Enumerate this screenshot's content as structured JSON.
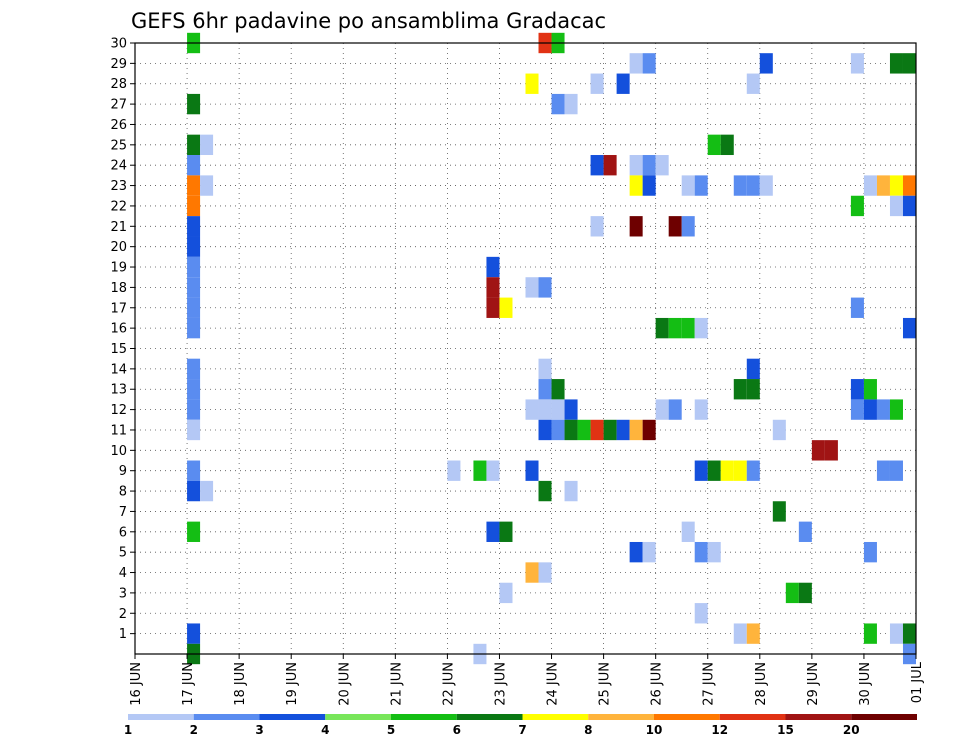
{
  "chart_data": {
    "type": "heatmap",
    "title": "GEFS 6hr padavine po ansamblima Gradacac",
    "xlabel": "",
    "ylabel": "",
    "x_ticks": [
      "16 JUN",
      "17 JUN",
      "18 JUN",
      "19 JUN",
      "20 JUN",
      "21 JUN",
      "22 JUN",
      "23 JUN",
      "24 JUN",
      "25 JUN",
      "26 JUN",
      "27 JUN",
      "28 JUN",
      "29 JUN",
      "30 JUN",
      "01 JUL"
    ],
    "x_range": [
      "16 JUN 00",
      "01 JUL 00"
    ],
    "step_hours": 6,
    "y_ticks": [
      1,
      2,
      3,
      4,
      5,
      6,
      7,
      8,
      9,
      10,
      11,
      12,
      13,
      14,
      15,
      16,
      17,
      18,
      19,
      20,
      21,
      22,
      23,
      24,
      25,
      26,
      27,
      28,
      29,
      30
    ],
    "y_range": [
      0,
      30
    ],
    "grid": true,
    "legend": {
      "placement": "bottom",
      "labels": [
        "1",
        "2",
        "3",
        "4",
        "5",
        "6",
        "7",
        "8",
        "10",
        "12",
        "15",
        "20"
      ],
      "colors": [
        "#b4c8f5",
        "#5a8cf0",
        "#1450dc",
        "#78e65a",
        "#14be14",
        "#0a7814",
        "#ffff00",
        "#ffb43c",
        "#ff7800",
        "#e13214",
        "#a01414",
        "#6e0000"
      ]
    },
    "cells": [
      [
        "17 JUN 00",
        30,
        5
      ],
      [
        "17 JUN 00",
        27,
        6
      ],
      [
        "17 JUN 00",
        25,
        6
      ],
      [
        "17 JUN 00",
        24,
        2
      ],
      [
        "17 JUN 00",
        23,
        9
      ],
      [
        "17 JUN 00",
        22,
        9
      ],
      [
        "17 JUN 00",
        21,
        3
      ],
      [
        "17 JUN 00",
        20,
        3
      ],
      [
        "17 JUN 00",
        19,
        2
      ],
      [
        "17 JUN 00",
        18,
        2
      ],
      [
        "17 JUN 00",
        17,
        2
      ],
      [
        "17 JUN 00",
        16,
        2
      ],
      [
        "17 JUN 00",
        14,
        2
      ],
      [
        "17 JUN 00",
        13,
        2
      ],
      [
        "17 JUN 00",
        12,
        2
      ],
      [
        "17 JUN 00",
        11,
        1
      ],
      [
        "17 JUN 00",
        9,
        2
      ],
      [
        "17 JUN 00",
        8,
        3
      ],
      [
        "17 JUN 00",
        6,
        5
      ],
      [
        "17 JUN 00",
        1,
        3
      ],
      [
        "17 JUN 00",
        0,
        6
      ],
      [
        "17 JUN 06",
        25,
        1
      ],
      [
        "17 JUN 06",
        23,
        1
      ],
      [
        "17 JUN 06",
        8,
        1
      ],
      [
        "22 JUN 00",
        9,
        1
      ],
      [
        "22 JUN 12",
        9,
        5
      ],
      [
        "22 JUN 18",
        9,
        1
      ],
      [
        "22 JUN 12",
        0,
        1
      ],
      [
        "22 JUN 18",
        19,
        3
      ],
      [
        "22 JUN 18",
        18,
        11
      ],
      [
        "22 JUN 18",
        17,
        11
      ],
      [
        "22 JUN 18",
        6,
        3
      ],
      [
        "23 JUN 00",
        17,
        7
      ],
      [
        "23 JUN 00",
        6,
        6
      ],
      [
        "23 JUN 00",
        3,
        1
      ],
      [
        "23 JUN 12",
        28,
        7
      ],
      [
        "23 JUN 12",
        18,
        1
      ],
      [
        "23 JUN 12",
        12,
        1
      ],
      [
        "23 JUN 12",
        9,
        3
      ],
      [
        "23 JUN 12",
        4,
        8
      ],
      [
        "23 JUN 18",
        30,
        10
      ],
      [
        "23 JUN 18",
        18,
        2
      ],
      [
        "23 JUN 18",
        14,
        1
      ],
      [
        "23 JUN 18",
        13,
        2
      ],
      [
        "23 JUN 18",
        12,
        1
      ],
      [
        "23 JUN 18",
        11,
        3
      ],
      [
        "23 JUN 18",
        8,
        6
      ],
      [
        "23 JUN 18",
        4,
        1
      ],
      [
        "24 JUN 00",
        30,
        5
      ],
      [
        "24 JUN 00",
        27,
        2
      ],
      [
        "24 JUN 00",
        13,
        6
      ],
      [
        "24 JUN 00",
        12,
        1
      ],
      [
        "24 JUN 00",
        11,
        2
      ],
      [
        "24 JUN 06",
        27,
        1
      ],
      [
        "24 JUN 06",
        12,
        3
      ],
      [
        "24 JUN 06",
        11,
        6
      ],
      [
        "24 JUN 06",
        8,
        1
      ],
      [
        "24 JUN 12",
        11,
        5
      ],
      [
        "24 JUN 18",
        28,
        1
      ],
      [
        "24 JUN 18",
        24,
        3
      ],
      [
        "24 JUN 18",
        21,
        1
      ],
      [
        "24 JUN 18",
        11,
        10
      ],
      [
        "25 JUN 00",
        24,
        11
      ],
      [
        "25 JUN 00",
        11,
        6
      ],
      [
        "25 JUN 06",
        28,
        3
      ],
      [
        "25 JUN 06",
        11,
        3
      ],
      [
        "25 JUN 12",
        29,
        1
      ],
      [
        "25 JUN 12",
        24,
        1
      ],
      [
        "25 JUN 12",
        23,
        7
      ],
      [
        "25 JUN 12",
        21,
        12
      ],
      [
        "25 JUN 12",
        11,
        8
      ],
      [
        "25 JUN 12",
        5,
        3
      ],
      [
        "25 JUN 18",
        29,
        2
      ],
      [
        "25 JUN 18",
        24,
        2
      ],
      [
        "25 JUN 18",
        23,
        3
      ],
      [
        "25 JUN 18",
        11,
        12
      ],
      [
        "25 JUN 18",
        5,
        1
      ],
      [
        "26 JUN 00",
        24,
        1
      ],
      [
        "26 JUN 00",
        16,
        6
      ],
      [
        "26 JUN 00",
        12,
        1
      ],
      [
        "26 JUN 06",
        21,
        12
      ],
      [
        "26 JUN 06",
        16,
        5
      ],
      [
        "26 JUN 06",
        12,
        2
      ],
      [
        "26 JUN 12",
        23,
        1
      ],
      [
        "26 JUN 12",
        21,
        2
      ],
      [
        "26 JUN 12",
        16,
        5
      ],
      [
        "26 JUN 12",
        6,
        1
      ],
      [
        "26 JUN 18",
        23,
        2
      ],
      [
        "26 JUN 18",
        16,
        1
      ],
      [
        "26 JUN 18",
        12,
        1
      ],
      [
        "26 JUN 18",
        9,
        3
      ],
      [
        "26 JUN 18",
        5,
        2
      ],
      [
        "26 JUN 18",
        2,
        1
      ],
      [
        "27 JUN 00",
        25,
        5
      ],
      [
        "27 JUN 00",
        9,
        6
      ],
      [
        "27 JUN 00",
        5,
        1
      ],
      [
        "27 JUN 06",
        25,
        6
      ],
      [
        "27 JUN 06",
        9,
        7
      ],
      [
        "27 JUN 12",
        23,
        2
      ],
      [
        "27 JUN 12",
        13,
        6
      ],
      [
        "27 JUN 12",
        9,
        7
      ],
      [
        "27 JUN 12",
        1,
        1
      ],
      [
        "27 JUN 18",
        28,
        1
      ],
      [
        "27 JUN 18",
        23,
        2
      ],
      [
        "27 JUN 18",
        14,
        3
      ],
      [
        "27 JUN 18",
        13,
        6
      ],
      [
        "27 JUN 18",
        9,
        2
      ],
      [
        "27 JUN 18",
        1,
        8
      ],
      [
        "28 JUN 00",
        29,
        3
      ],
      [
        "28 JUN 00",
        23,
        1
      ],
      [
        "28 JUN 06",
        11,
        1
      ],
      [
        "28 JUN 06",
        7,
        6
      ],
      [
        "28 JUN 12",
        3,
        5
      ],
      [
        "28 JUN 18",
        6,
        2
      ],
      [
        "28 JUN 18",
        3,
        6
      ],
      [
        "29 JUN 00",
        10,
        11
      ],
      [
        "29 JUN 06",
        10,
        11
      ],
      [
        "29 JUN 18",
        29,
        1
      ],
      [
        "29 JUN 18",
        22,
        5
      ],
      [
        "29 JUN 18",
        17,
        2
      ],
      [
        "29 JUN 18",
        13,
        3
      ],
      [
        "29 JUN 18",
        12,
        2
      ],
      [
        "30 JUN 00",
        23,
        1
      ],
      [
        "30 JUN 00",
        13,
        5
      ],
      [
        "30 JUN 00",
        12,
        3
      ],
      [
        "30 JUN 00",
        5,
        2
      ],
      [
        "30 JUN 00",
        1,
        5
      ],
      [
        "30 JUN 06",
        23,
        8
      ],
      [
        "30 JUN 06",
        12,
        2
      ],
      [
        "30 JUN 06",
        9,
        2
      ],
      [
        "30 JUN 12",
        29,
        6
      ],
      [
        "30 JUN 12",
        23,
        7
      ],
      [
        "30 JUN 12",
        22,
        1
      ],
      [
        "30 JUN 12",
        12,
        5
      ],
      [
        "30 JUN 12",
        9,
        2
      ],
      [
        "30 JUN 12",
        1,
        1
      ],
      [
        "30 JUN 18",
        29,
        6
      ],
      [
        "30 JUN 18",
        23,
        9
      ],
      [
        "30 JUN 18",
        22,
        3
      ],
      [
        "30 JUN 18",
        16,
        3
      ],
      [
        "30 JUN 18",
        1,
        6
      ],
      [
        "30 JUN 18",
        0,
        2
      ]
    ]
  }
}
